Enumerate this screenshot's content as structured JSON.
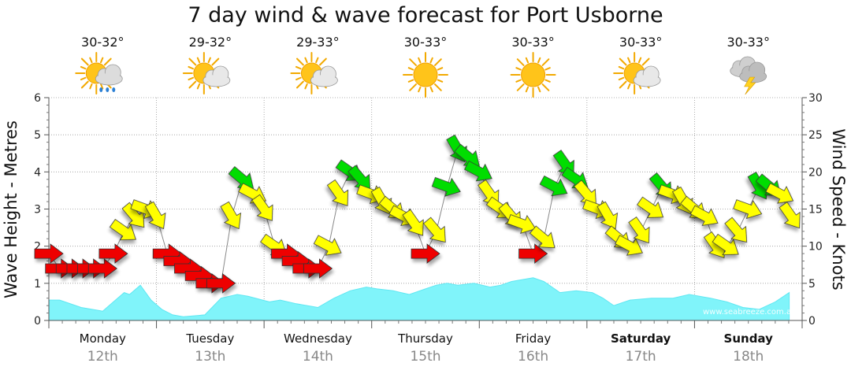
{
  "chart_data": {
    "type": "line",
    "title": "7 day wind & wave forecast for Port Usborne",
    "ylabel_left": "Wave Height - Metres",
    "ylabel_right": "Wind Speed - Knots",
    "ylim_left": [
      0,
      6
    ],
    "ylim_right": [
      0,
      30
    ],
    "yticks_left": [
      "0",
      "1",
      "2",
      "3",
      "4",
      "5",
      "6"
    ],
    "yticks_right": [
      "0",
      "5",
      "10",
      "15",
      "20",
      "25",
      "30"
    ],
    "grid": true,
    "days": [
      {
        "name": "Monday",
        "date": "12th",
        "temp": "30-32°",
        "weather": "sun-cloud-rain-icon",
        "bold": false
      },
      {
        "name": "Tuesday",
        "date": "13th",
        "temp": "29-32°",
        "weather": "sun-cloud-icon",
        "bold": false
      },
      {
        "name": "Wednesday",
        "date": "14th",
        "temp": "29-33°",
        "weather": "sun-cloud-icon",
        "bold": false
      },
      {
        "name": "Thursday",
        "date": "15th",
        "temp": "30-33°",
        "weather": "sun-icon",
        "bold": false
      },
      {
        "name": "Friday",
        "date": "16th",
        "temp": "30-33°",
        "weather": "sun-icon",
        "bold": false
      },
      {
        "name": "Saturday",
        "date": "17th",
        "temp": "30-33°",
        "weather": "sun-cloud-icon",
        "bold": true
      },
      {
        "name": "Sunday",
        "date": "18th",
        "temp": "30-33°",
        "weather": "storm-icon",
        "bold": true
      }
    ],
    "wave_height": {
      "name": "Wave Height",
      "t": [
        0,
        0.1,
        0.3,
        0.5,
        0.6,
        0.7,
        0.75,
        0.85,
        0.95,
        1.05,
        1.15,
        1.25,
        1.45,
        1.6,
        1.75,
        1.85,
        2.05,
        2.15,
        2.3,
        2.5,
        2.65,
        2.8,
        2.95,
        3.05,
        3.2,
        3.35,
        3.5,
        3.6,
        3.7,
        3.8,
        3.95,
        4.1,
        4.2,
        4.3,
        4.4,
        4.5,
        4.6,
        4.75,
        4.9,
        5.05,
        5.15,
        5.25,
        5.4,
        5.6,
        5.8,
        5.95,
        6.15,
        6.3,
        6.45,
        6.6,
        6.75,
        6.88
      ],
      "values": [
        0.55,
        0.55,
        0.35,
        0.25,
        0.5,
        0.75,
        0.7,
        0.95,
        0.55,
        0.3,
        0.15,
        0.1,
        0.15,
        0.6,
        0.7,
        0.65,
        0.5,
        0.55,
        0.45,
        0.35,
        0.6,
        0.8,
        0.9,
        0.85,
        0.8,
        0.7,
        0.85,
        0.95,
        1.0,
        0.95,
        1.0,
        0.9,
        0.95,
        1.05,
        1.1,
        1.15,
        1.05,
        0.75,
        0.8,
        0.75,
        0.6,
        0.4,
        0.55,
        0.6,
        0.6,
        0.7,
        0.6,
        0.5,
        0.35,
        0.3,
        0.5,
        0.75
      ]
    },
    "wind": {
      "name": "Wind Speed",
      "t": [
        0.0,
        0.1,
        0.2,
        0.3,
        0.4,
        0.5,
        0.6,
        0.7,
        0.8,
        0.9,
        1.0,
        1.1,
        1.2,
        1.3,
        1.4,
        1.5,
        1.6,
        1.7,
        1.8,
        1.9,
        2.0,
        2.1,
        2.2,
        2.3,
        2.4,
        2.5,
        2.6,
        2.7,
        2.8,
        2.9,
        3.0,
        3.1,
        3.2,
        3.3,
        3.4,
        3.5,
        3.6,
        3.7,
        3.8,
        3.9,
        4.0,
        4.1,
        4.2,
        4.3,
        4.4,
        4.5,
        4.6,
        4.7,
        4.8,
        4.9,
        5.0,
        5.1,
        5.2,
        5.3,
        5.4,
        5.5,
        5.6,
        5.7,
        5.8,
        5.9,
        6.0,
        6.1,
        6.2,
        6.3,
        6.4,
        6.5,
        6.6,
        6.7,
        6.8,
        6.9
      ],
      "knots": [
        9,
        7,
        7,
        7,
        7,
        7,
        9,
        12,
        14,
        15,
        14,
        9,
        8,
        7,
        6,
        5,
        5,
        14,
        19,
        17,
        15,
        10,
        9,
        8,
        7,
        7,
        10,
        17,
        20,
        19,
        17,
        16,
        15,
        14,
        13,
        9,
        12,
        18,
        23,
        22,
        20,
        17,
        15,
        14,
        13,
        9,
        11,
        18,
        21,
        19,
        17,
        15,
        14,
        11,
        10,
        12,
        15,
        18,
        17,
        16,
        15,
        14,
        10,
        10,
        12,
        15,
        18,
        18,
        17,
        14
      ],
      "color_scale": [
        {
          "below": 10,
          "color": "#ee0000"
        },
        {
          "below": 18,
          "color": "#ffff00"
        },
        {
          "below": 100,
          "color": "#00dd00"
        }
      ]
    },
    "colors": {
      "wave_fill": "#80f4fa",
      "wave_fill_dark": "#5fe7f2",
      "grid": "#999999"
    }
  },
  "credit": "www.seabreeze.com.au"
}
